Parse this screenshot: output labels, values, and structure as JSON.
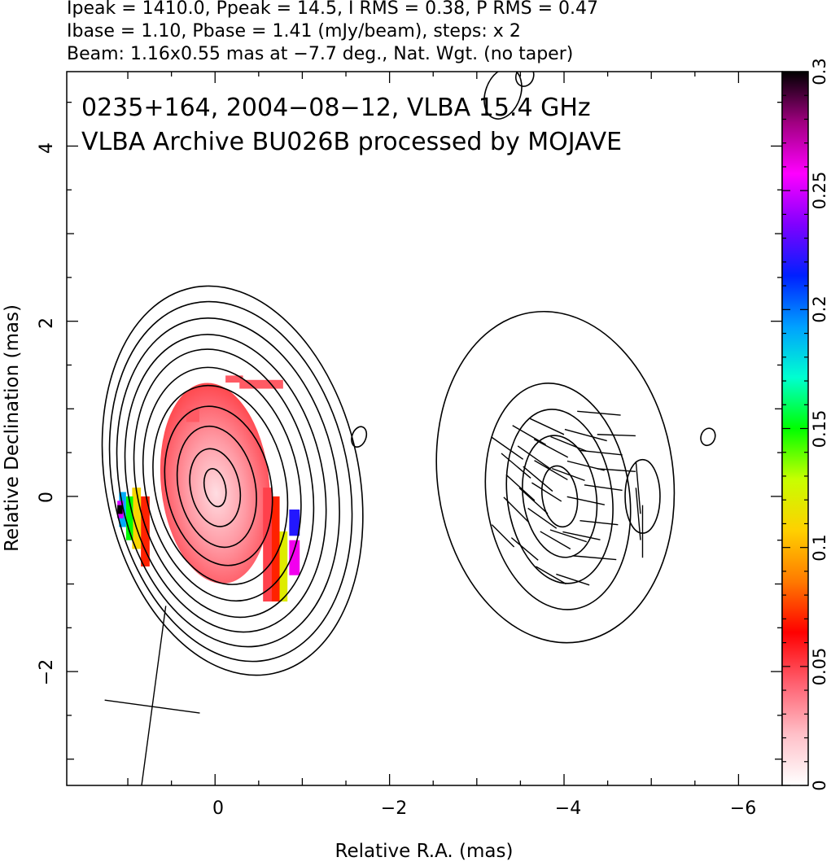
{
  "header": {
    "line1": "Ipeak = 1410.0, Ppeak = 14.5, I RMS = 0.38, P RMS = 0.47",
    "line2": "Ibase = 1.10, Pbase = 1.41 (mJy/beam), steps: x 2",
    "line3": "Beam: 1.16x0.55 mas at −7.7 deg., Nat. Wgt. (no taper)"
  },
  "chart_data": {
    "type": "heatmap",
    "title_lines": [
      "0235+164, 2004−08−12, VLBA 15.4 GHz",
      "VLBA Archive BU026B processed by MOJAVE"
    ],
    "xlabel": "Relative R.A. (mas)",
    "ylabel": "Relative Declination (mas)",
    "xlim": [
      1.7,
      -6.5
    ],
    "ylim": [
      -3.3,
      4.85
    ],
    "x_ticks": [
      0,
      -2,
      -4,
      -6
    ],
    "x_tick_labels": [
      "0",
      "−2",
      "−4",
      "−6"
    ],
    "y_ticks": [
      -2,
      0,
      2,
      4
    ],
    "y_tick_labels": [
      "−2",
      "0",
      "2",
      "4"
    ],
    "colorbar": {
      "range": [
        0,
        0.3
      ],
      "ticks": [
        0,
        0.05,
        0.1,
        0.15,
        0.2,
        0.25,
        0.3
      ],
      "tick_labels": [
        "0",
        "0.05",
        "0.1",
        "0.15",
        "0.2",
        "0.25",
        "0.3"
      ],
      "colors": [
        "#ffffff",
        "#ffc0c8",
        "#ff6070",
        "#ff0000",
        "#ff7a00",
        "#ffd000",
        "#c8ff00",
        "#00ff00",
        "#00ffd0",
        "#00a0ff",
        "#0020ff",
        "#8000ff",
        "#ff00ff",
        "#a00080",
        "#000000"
      ]
    },
    "contours_left": {
      "center": [
        0.0,
        0.1
      ],
      "radii_x": [
        1.45,
        1.35,
        1.24,
        1.12,
        1.0,
        0.88,
        0.75,
        0.6,
        0.44,
        0.28,
        0.12
      ],
      "radii_y": [
        2.25,
        2.08,
        1.9,
        1.72,
        1.55,
        1.35,
        1.15,
        0.92,
        0.7,
        0.45,
        0.22
      ],
      "x_offset": [
        -0.2,
        -0.18,
        -0.15,
        -0.12,
        -0.1,
        -0.08,
        -0.06,
        -0.04,
        -0.02,
        0,
        0
      ],
      "y_offset": [
        0.08,
        0.07,
        0.06,
        0.05,
        0.05,
        0.04,
        0.03,
        0.02,
        0.01,
        0,
        0
      ]
    },
    "contours_right": {
      "center": [
        -3.95,
        0.0
      ],
      "radii_x": [
        1.35,
        0.82,
        0.6,
        0.42,
        0.2
      ],
      "radii_y": [
        1.9,
        1.3,
        1.0,
        0.7,
        0.35
      ],
      "x_offset": [
        0.05,
        0.02,
        0,
        0,
        0
      ],
      "y_offset": [
        0.22,
        0,
        0,
        0,
        0
      ]
    },
    "contour_blob": {
      "center": [
        -4.9,
        0.0
      ],
      "radii": [
        0.2,
        0.42
      ]
    },
    "small_contours": [
      {
        "center": [
          -1.65,
          0.68
        ],
        "radii": [
          0.08,
          0.12
        ]
      },
      {
        "center": [
          -5.65,
          0.68
        ],
        "radii": [
          0.08,
          0.1
        ]
      },
      {
        "center": [
          -3.3,
          4.6
        ],
        "radii": [
          0.2,
          0.3
        ]
      },
      {
        "center": [
          -3.55,
          4.8
        ],
        "radii": [
          0.1,
          0.12
        ]
      }
    ],
    "fpol_pixels": [
      {
        "x": -0.85,
        "y": -0.15,
        "w": 0.12,
        "h": 0.3,
        "v": 0.22
      },
      {
        "x": -0.85,
        "y": -0.5,
        "w": 0.12,
        "h": 0.4,
        "v": 0.26
      },
      {
        "x": -0.73,
        "y": -0.4,
        "w": 0.1,
        "h": 0.8,
        "v": 0.12
      },
      {
        "x": -0.64,
        "y": 0.0,
        "w": 0.1,
        "h": 1.2,
        "v": 0.07
      },
      {
        "x": -0.55,
        "y": 0.1,
        "w": 0.1,
        "h": 1.3,
        "v": 0.05
      },
      {
        "x": 0.85,
        "y": 0.0,
        "w": 0.1,
        "h": 0.8,
        "v": 0.07
      },
      {
        "x": 0.95,
        "y": 0.1,
        "w": 0.1,
        "h": 0.7,
        "v": 0.11
      },
      {
        "x": 1.02,
        "y": 0.0,
        "w": 0.08,
        "h": 0.5,
        "v": 0.15
      },
      {
        "x": 1.1,
        "y": 0.05,
        "w": 0.08,
        "h": 0.4,
        "v": 0.19
      },
      {
        "x": 1.12,
        "y": -0.05,
        "w": 0.07,
        "h": 0.2,
        "v": 0.25
      },
      {
        "x": 1.12,
        "y": -0.1,
        "w": 0.06,
        "h": 0.1,
        "v": 0.3
      }
    ],
    "fpol_core": {
      "center": [
        0.0,
        0.15
      ],
      "rx": 0.62,
      "ry": 1.15
    },
    "fpol_core_top": [
      {
        "x": -0.12,
        "y": 1.38,
        "w": 0.2,
        "h": 0.08
      },
      {
        "x": -0.28,
        "y": 1.33,
        "w": 0.5,
        "h": 0.1
      },
      {
        "x": 0.33,
        "y": 1.0,
        "w": 0.15,
        "h": 0.15
      }
    ],
    "evpa_vectors": [
      {
        "x": -3.35,
        "y": 0.55,
        "len": 0.22,
        "ang": 55
      },
      {
        "x": -3.45,
        "y": 0.35,
        "len": 0.22,
        "ang": 50
      },
      {
        "x": -3.5,
        "y": 0.1,
        "len": 0.22,
        "ang": 48
      },
      {
        "x": -3.45,
        "y": -0.15,
        "len": 0.2,
        "ang": 45
      },
      {
        "x": -3.6,
        "y": 0.7,
        "len": 0.22,
        "ang": 60
      },
      {
        "x": -3.65,
        "y": 0.45,
        "len": 0.22,
        "ang": 55
      },
      {
        "x": -3.7,
        "y": 0.2,
        "len": 0.22,
        "ang": 50
      },
      {
        "x": -3.65,
        "y": -0.05,
        "len": 0.22,
        "ang": 48
      },
      {
        "x": -3.8,
        "y": 0.8,
        "len": 0.22,
        "ang": 65
      },
      {
        "x": -3.85,
        "y": 0.55,
        "len": 0.22,
        "ang": 62
      },
      {
        "x": -3.85,
        "y": 0.3,
        "len": 0.22,
        "ang": 60
      },
      {
        "x": -3.8,
        "y": 0.05,
        "len": 0.2,
        "ang": 58
      },
      {
        "x": -3.75,
        "y": -0.25,
        "len": 0.2,
        "ang": 55
      },
      {
        "x": -3.9,
        "y": -0.5,
        "len": 0.2,
        "ang": 60
      },
      {
        "x": -4.05,
        "y": 0.6,
        "len": 0.22,
        "ang": 68
      },
      {
        "x": -4.05,
        "y": 0.25,
        "len": 0.2,
        "ang": 70
      },
      {
        "x": -4.05,
        "y": -0.45,
        "len": 0.22,
        "ang": 72
      },
      {
        "x": -4.25,
        "y": 0.7,
        "len": 0.25,
        "ang": 75
      },
      {
        "x": -4.25,
        "y": 0.35,
        "len": 0.22,
        "ang": 76
      },
      {
        "x": -4.25,
        "y": -0.05,
        "len": 0.22,
        "ang": 78
      },
      {
        "x": -4.2,
        "y": -0.45,
        "len": 0.22,
        "ang": 78
      },
      {
        "x": -4.4,
        "y": 0.95,
        "len": 0.25,
        "ang": 85
      },
      {
        "x": -4.42,
        "y": 0.5,
        "len": 0.25,
        "ang": 84
      },
      {
        "x": -4.45,
        "y": 0.1,
        "len": 0.22,
        "ang": 82
      },
      {
        "x": -4.4,
        "y": -0.3,
        "len": 0.22,
        "ang": 84
      },
      {
        "x": -4.35,
        "y": -0.7,
        "len": 0.25,
        "ang": 85
      },
      {
        "x": -4.6,
        "y": 0.7,
        "len": 0.22,
        "ang": 88
      },
      {
        "x": -4.6,
        "y": 0.3,
        "len": 0.22,
        "ang": 86
      },
      {
        "x": -3.85,
        "y": -0.9,
        "len": 0.2,
        "ang": 60
      },
      {
        "x": -4.1,
        "y": -0.95,
        "len": 0.2,
        "ang": 72
      },
      {
        "x": -3.55,
        "y": -0.6,
        "len": 0.2,
        "ang": 50
      },
      {
        "x": -3.3,
        "y": -0.45,
        "len": 0.18,
        "ang": 45
      },
      {
        "x": -4.85,
        "y": 0.1,
        "len": 0.3,
        "ang": 5
      },
      {
        "x": -4.85,
        "y": -0.2,
        "len": 0.3,
        "ang": 5
      },
      {
        "x": -4.9,
        "y": -0.4,
        "len": 0.3,
        "ang": 0
      }
    ],
    "beam": {
      "center": [
        0.72,
        -2.4
      ],
      "major": 1.16,
      "minor": 0.55,
      "pa_deg": -7.7
    }
  }
}
